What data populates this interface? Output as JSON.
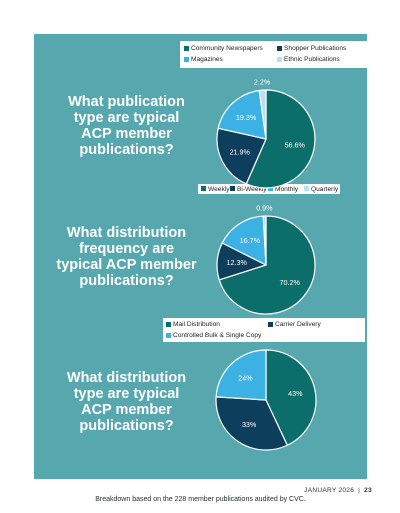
{
  "colors": {
    "panel": "#57a8ae",
    "dark_teal": "#0c6e6a",
    "navy": "#0d3e5c",
    "sky": "#3cb1e4",
    "pale": "#b7e1f3"
  },
  "questions": [
    [
      "What publication",
      "type are typical",
      "ACP member",
      "publications?"
    ],
    [
      "What distribution",
      "frequency are",
      "typical ACP member",
      "publications?"
    ],
    [
      "What distribution",
      "type are typical",
      "ACP member",
      "publications?"
    ]
  ],
  "chart_data": [
    {
      "type": "pie",
      "title": "What publication type are typical ACP member publications?",
      "legend": [
        "Community Newspapers",
        "Shopper Publications",
        "Magazines",
        "Ethnic Publications"
      ],
      "slices": [
        {
          "label": "Community Newspapers",
          "value": 56.6,
          "text": "56.6%",
          "color": "#0c6e6a"
        },
        {
          "label": "Shopper Publications",
          "value": 21.9,
          "text": "21.9%",
          "color": "#0d3e5c"
        },
        {
          "label": "Magazines",
          "value": 19.3,
          "text": "19.3%",
          "color": "#3cb1e4"
        },
        {
          "label": "Ethnic Publications",
          "value": 2.2,
          "text": "2.2%",
          "color": "#b7e1f3"
        }
      ]
    },
    {
      "type": "pie",
      "title": "What distribution frequency are typical ACP member publications?",
      "legend": [
        "Weekly",
        "Bi-Weekly",
        "Monthly",
        "Quarterly"
      ],
      "slices": [
        {
          "label": "Weekly",
          "value": 70.2,
          "text": "70.2%",
          "color": "#0c6e6a"
        },
        {
          "label": "Bi-Weekly",
          "value": 12.3,
          "text": "12.3%",
          "color": "#0d3e5c"
        },
        {
          "label": "Monthly",
          "value": 16.7,
          "text": "16.7%",
          "color": "#3cb1e4"
        },
        {
          "label": "Quarterly",
          "value": 0.9,
          "text": "0.9%",
          "color": "#b7e1f3"
        }
      ]
    },
    {
      "type": "pie",
      "title": "What distribution type are typical ACP member publications?",
      "legend": [
        "Mail Distribution",
        "Carrier Delivery",
        "Controlled Bulk & Single Copy"
      ],
      "slices": [
        {
          "label": "Mail Distribution",
          "value": 43,
          "text": "43%",
          "color": "#0c6e6a"
        },
        {
          "label": "Carrier Delivery",
          "value": 33,
          "text": "33%",
          "color": "#0d3e5c"
        },
        {
          "label": "Controlled Bulk & Single Copy",
          "value": 24,
          "text": "24%",
          "color": "#3cb1e4"
        }
      ]
    }
  ],
  "footnote": "Breakdown based on the 228 member publications audited by CVC.",
  "footer": {
    "date": "JANUARY 2026",
    "separator": "|",
    "page": "23"
  }
}
